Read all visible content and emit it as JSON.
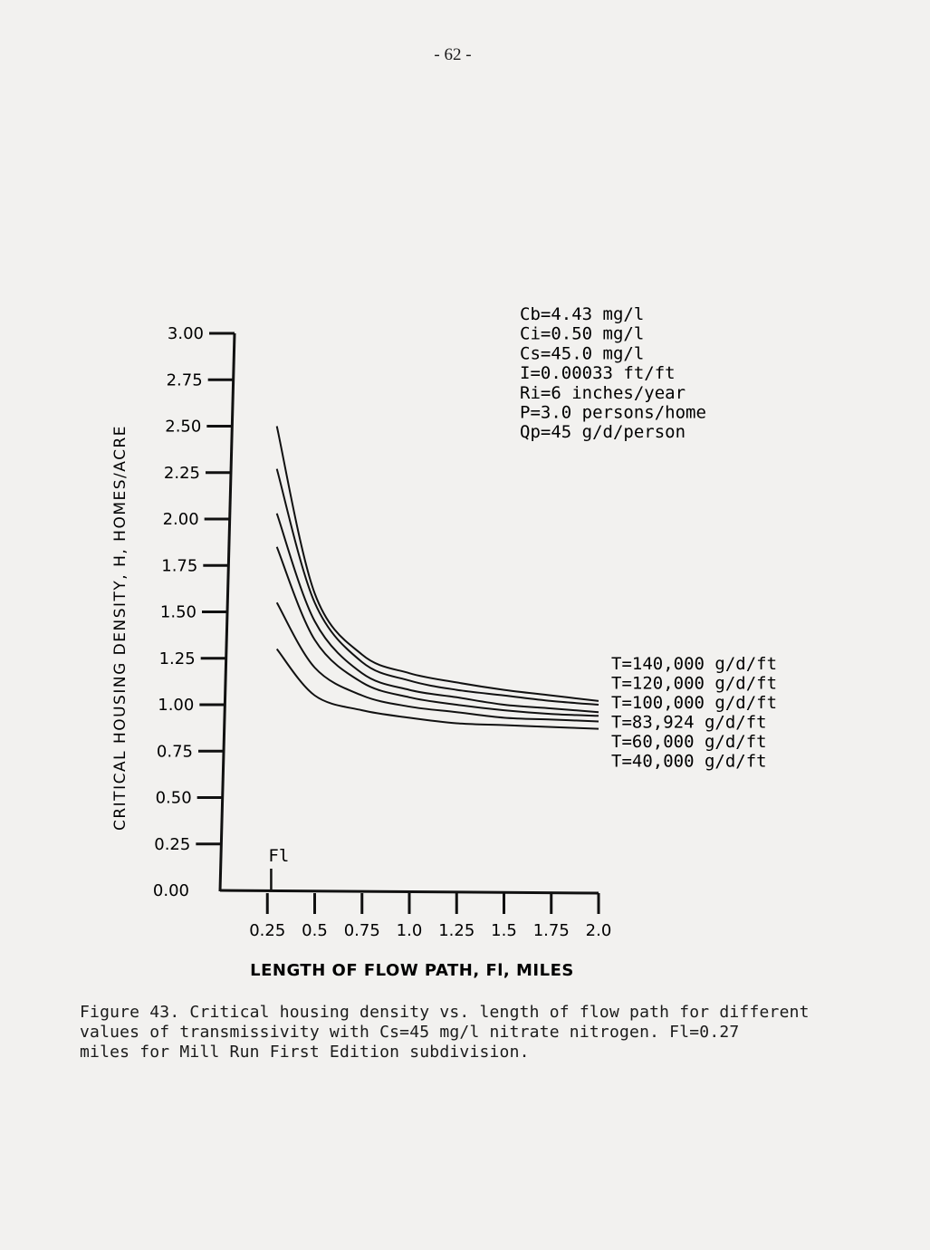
{
  "page": {
    "number": "- 62 -"
  },
  "caption": {
    "lines": [
      "Figure 43. Critical housing density vs. length of flow path for different",
      "values of transmissivity with Cs=45 mg/l nitrate nitrogen. Fl=0.27",
      "miles for Mill Run First Edition subdivision."
    ]
  },
  "chart_data": {
    "type": "line",
    "title": "",
    "xlabel": "LENGTH OF FLOW PATH, Fl, MILES",
    "ylabel": "CRITICAL HOUSING DENSITY, H, HOMES/ACRE",
    "xlim": [
      0.0,
      2.0
    ],
    "ylim": [
      0.0,
      3.0
    ],
    "x_ticks": [
      0.25,
      0.5,
      0.75,
      1.0,
      1.25,
      1.5,
      1.75,
      2.0
    ],
    "x_tick_labels": [
      "0.25",
      "0.5",
      "0.75",
      "1.0",
      "1.25",
      "1.5",
      "1.75",
      "2.0"
    ],
    "y_ticks": [
      0.0,
      0.25,
      0.5,
      0.75,
      1.0,
      1.25,
      1.5,
      1.75,
      2.0,
      2.25,
      2.5,
      2.75,
      3.0
    ],
    "y_tick_labels": [
      "0.00",
      "0.25",
      "0.50",
      "0.75",
      "1.00",
      "1.25",
      "1.50",
      "1.75",
      "2.00",
      "2.25",
      "2.50",
      "2.75",
      "3.00"
    ],
    "grid": false,
    "parameters": [
      "Cb=4.43 mg/l",
      "Ci=0.50 mg/l",
      "Cs=45.0 mg/l",
      "I=0.00033 ft/ft",
      "Ri=6 inches/year",
      "P=3.0 persons/home",
      "Qp=45 g/d/person"
    ],
    "marker": {
      "label": "Fl",
      "x": 0.27
    },
    "series": [
      {
        "name": "T=140,000 g/d/ft",
        "x": [
          0.3,
          0.5,
          0.75,
          1.0,
          1.25,
          1.5,
          1.75,
          2.0
        ],
        "y": [
          2.5,
          1.6,
          1.27,
          1.17,
          1.12,
          1.08,
          1.05,
          1.02
        ]
      },
      {
        "name": "T=120,000 g/d/ft",
        "x": [
          0.3,
          0.5,
          0.75,
          1.0,
          1.25,
          1.5,
          1.75,
          2.0
        ],
        "y": [
          2.27,
          1.55,
          1.23,
          1.13,
          1.08,
          1.05,
          1.02,
          1.0
        ]
      },
      {
        "name": "T=100,000 g/d/ft",
        "x": [
          0.3,
          0.5,
          0.75,
          1.0,
          1.25,
          1.5,
          1.75,
          2.0
        ],
        "y": [
          2.03,
          1.45,
          1.17,
          1.08,
          1.04,
          1.0,
          0.98,
          0.96
        ]
      },
      {
        "name": "T=83,924 g/d/ft",
        "x": [
          0.3,
          0.5,
          0.75,
          1.0,
          1.25,
          1.5,
          1.75,
          2.0
        ],
        "y": [
          1.85,
          1.35,
          1.12,
          1.04,
          1.0,
          0.97,
          0.95,
          0.94
        ]
      },
      {
        "name": "T=60,000 g/d/ft",
        "x": [
          0.3,
          0.5,
          0.75,
          1.0,
          1.25,
          1.5,
          1.75,
          2.0
        ],
        "y": [
          1.55,
          1.2,
          1.05,
          0.99,
          0.96,
          0.93,
          0.92,
          0.91
        ]
      },
      {
        "name": "T=40,000 g/d/ft",
        "x": [
          0.3,
          0.5,
          0.75,
          1.0,
          1.25,
          1.5,
          1.75,
          2.0
        ],
        "y": [
          1.3,
          1.05,
          0.97,
          0.93,
          0.9,
          0.89,
          0.88,
          0.87
        ]
      }
    ]
  }
}
